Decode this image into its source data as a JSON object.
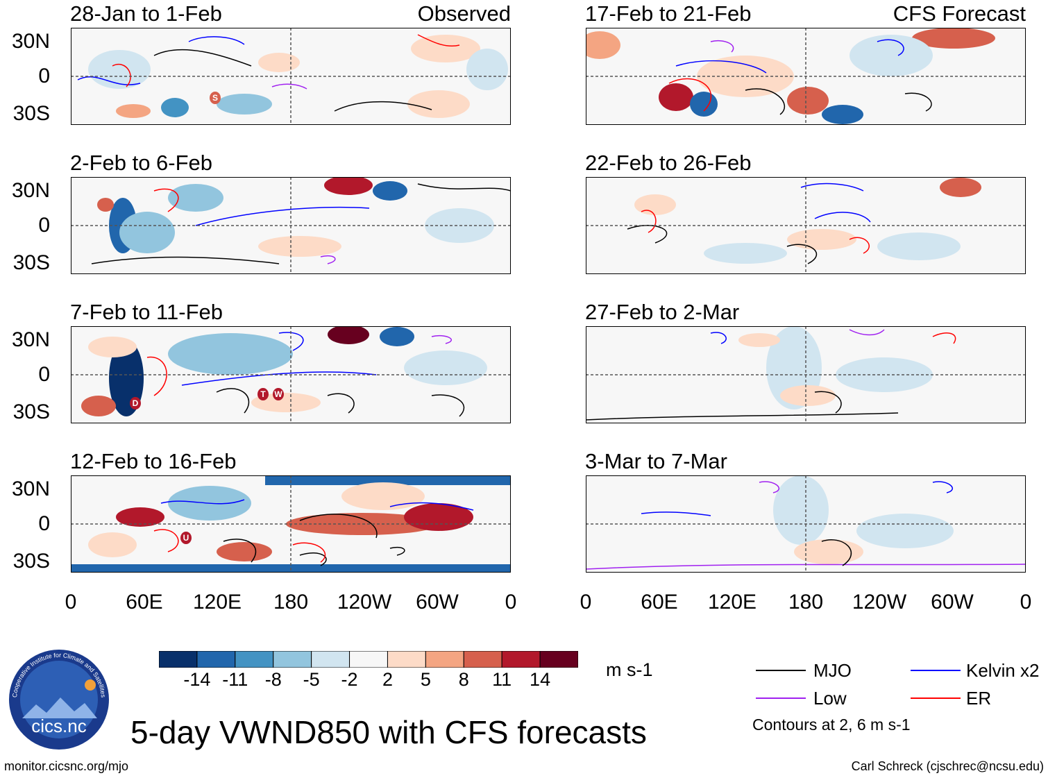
{
  "title": "5-day VWND850 with CFS forecasts",
  "observed_label": "Observed",
  "forecast_label": "CFS Forecast",
  "panels_left": [
    {
      "period": "28-Jan to 1-Feb"
    },
    {
      "period": "2-Feb to 6-Feb"
    },
    {
      "period": "7-Feb to 11-Feb"
    },
    {
      "period": "12-Feb to 16-Feb"
    }
  ],
  "panels_right": [
    {
      "period": "17-Feb to 21-Feb"
    },
    {
      "period": "22-Feb to 26-Feb"
    },
    {
      "period": "27-Feb to 2-Mar"
    },
    {
      "period": "3-Mar to 7-Mar"
    }
  ],
  "y_ticks": [
    "30N",
    "0",
    "30S"
  ],
  "x_ticks": [
    "0",
    "60E",
    "120E",
    "180",
    "120W",
    "60W",
    "0"
  ],
  "storm_markers": [
    {
      "panel": 0,
      "letter": "S"
    },
    {
      "panel": 2,
      "letter": "D"
    },
    {
      "panel": 2,
      "letter": "T"
    },
    {
      "panel": 2,
      "letter": "W"
    },
    {
      "panel": 3,
      "letter": "U"
    }
  ],
  "colorbar": {
    "units": "m s-1",
    "labels": [
      "-14",
      "-11",
      "-8",
      "-5",
      "-2",
      "2",
      "5",
      "8",
      "11",
      "14"
    ],
    "colors": [
      "#08306b",
      "#2166ac",
      "#4393c3",
      "#92c5de",
      "#d1e5f0",
      "#f7f7f7",
      "#fddbc7",
      "#f4a582",
      "#d6604d",
      "#b2182b",
      "#67001f"
    ]
  },
  "legend": {
    "items": [
      {
        "label": "MJO",
        "color": "#000000"
      },
      {
        "label": "Kelvin x2",
        "color": "#0000ff"
      },
      {
        "label": "Low",
        "color": "#a020f0"
      },
      {
        "label": "ER",
        "color": "#ff0000"
      }
    ],
    "contours_note": "Contours at 2, 6 m s-1"
  },
  "logo_text": "cics.nc",
  "logo_ring_text": "Cooperative Institute for Climate and Satellites",
  "footer_left": "monitor.cicsnc.org/mjo",
  "footer_right": "Carl Schreck (cjschrec@ncsu.edu)"
}
